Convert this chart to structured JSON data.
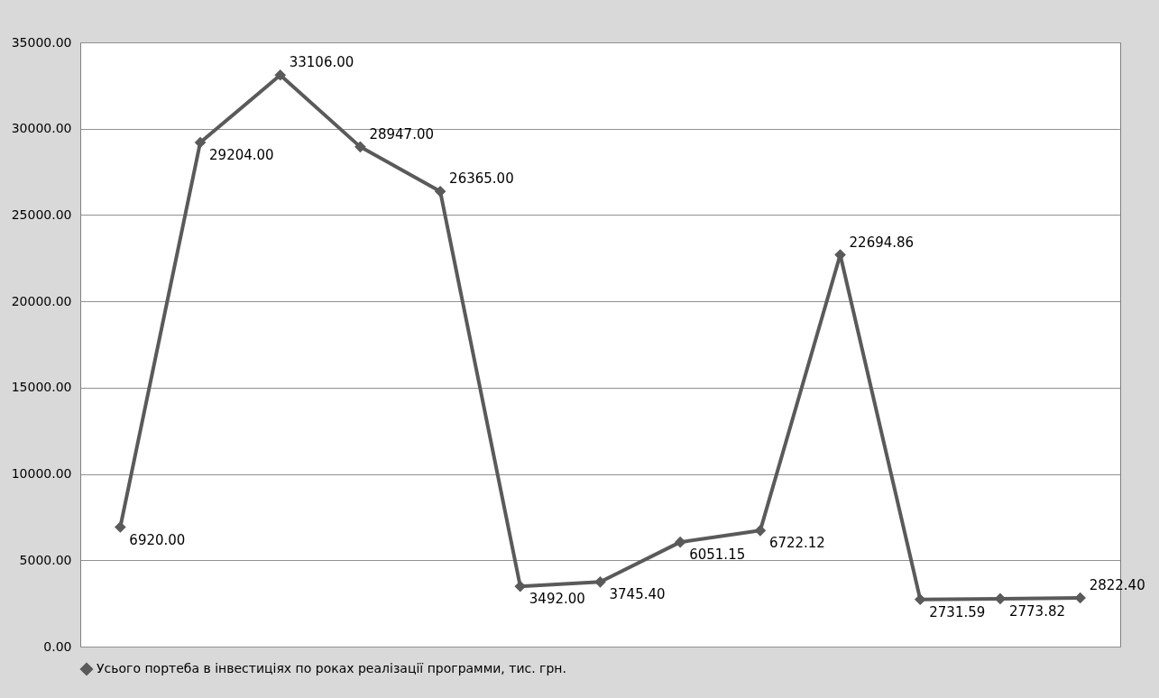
{
  "chart_data": {
    "type": "line",
    "categories": [
      null,
      null,
      null,
      null,
      null,
      null,
      null,
      null,
      null,
      null,
      null,
      null,
      null
    ],
    "series": [
      {
        "name": "Усього портеба в інвестиціях по роках реалізації программи, тис. грн.",
        "color": "#5a5a5a",
        "values": [
          6920.0,
          29204.0,
          33106.0,
          28947.0,
          26365.0,
          3492.0,
          3745.4,
          6051.15,
          6722.12,
          22694.86,
          2731.59,
          2773.82,
          2822.4
        ],
        "value_labels": [
          "6920.00",
          "29204.00",
          "33106.00",
          "28947.00",
          "26365.00",
          "3492.00",
          "3745.40",
          "6051.15",
          "6722.12",
          "22694.86",
          "2731.59",
          "2773.82",
          "2822.40"
        ]
      }
    ],
    "ylim": [
      0,
      35000
    ],
    "yticks": [
      {
        "value": 0,
        "label": "0.00"
      },
      {
        "value": 5000,
        "label": "5000.00"
      },
      {
        "value": 10000,
        "label": "10000.00"
      },
      {
        "value": 15000,
        "label": "15000.00"
      },
      {
        "value": 20000,
        "label": "20000.00"
      },
      {
        "value": 25000,
        "label": "25000.00"
      },
      {
        "value": 30000,
        "label": "30000.00"
      },
      {
        "value": 35000,
        "label": "35000.00"
      }
    ],
    "grid": "y",
    "legend": "bottom",
    "marker": "diamond"
  }
}
